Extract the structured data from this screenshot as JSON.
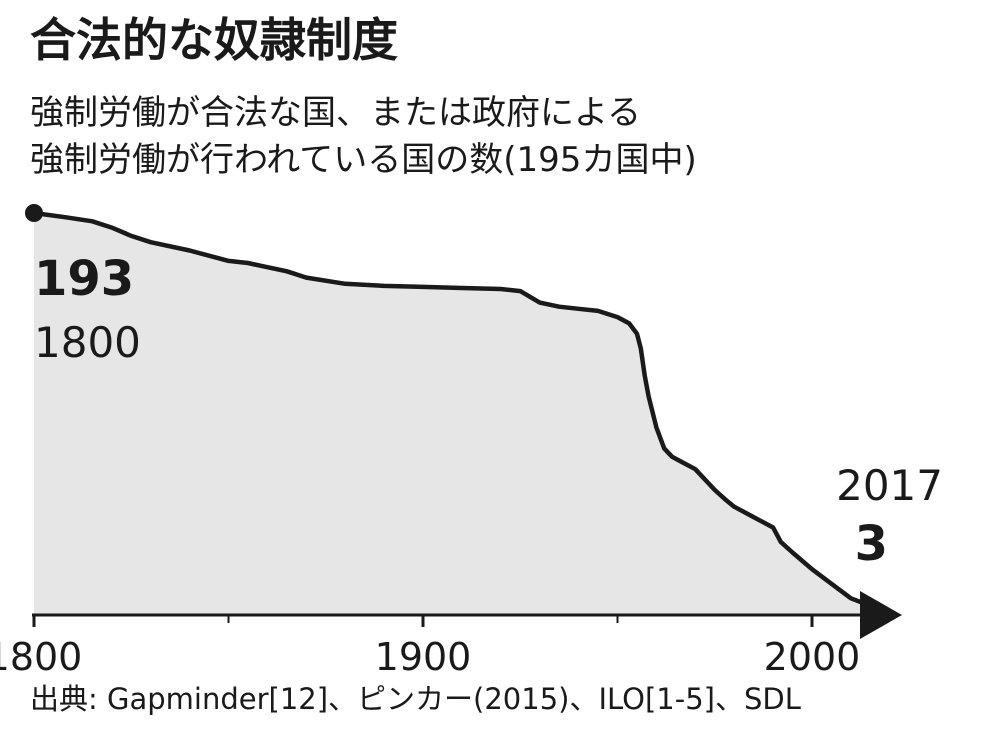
{
  "chart_data": {
    "type": "area",
    "title": "合法的な奴隷制度",
    "subtitle_lines": [
      "強制労働が合法な国、または政府による",
      "強制労働が行われている国の数(195カ国中)"
    ],
    "xlabel": "",
    "ylabel": "",
    "xlim": [
      1800,
      2020
    ],
    "ylim": [
      0,
      195
    ],
    "x_ticks": [
      1800,
      1900,
      2000
    ],
    "x_tick_labels": [
      "1800",
      "1900",
      "2000"
    ],
    "x_minor_ticks": [
      1850,
      1950
    ],
    "grid": false,
    "legend": "none",
    "series": [
      {
        "x": [
          1800,
          1808,
          1815,
          1820,
          1825,
          1830,
          1840,
          1848,
          1850,
          1855,
          1860,
          1865,
          1870,
          1880,
          1890,
          1900,
          1910,
          1920,
          1925,
          1930,
          1935,
          1940,
          1945,
          1950,
          1953,
          1955,
          1956,
          1957,
          1958,
          1960,
          1962,
          1964,
          1966,
          1968,
          1970,
          1975,
          1978,
          1980,
          1985,
          1990,
          1992,
          1995,
          2000,
          2005,
          2010,
          2017
        ],
        "y": [
          193,
          191,
          189,
          186,
          182,
          179,
          175,
          171,
          170,
          169,
          167,
          165,
          162,
          159,
          158,
          157.5,
          157,
          156.5,
          155.5,
          150,
          148,
          147,
          146,
          143,
          140,
          135,
          128,
          115,
          105,
          90,
          80,
          76,
          74,
          72,
          70,
          60,
          55,
          52,
          47,
          42,
          35,
          30,
          22,
          15,
          8,
          3
        ]
      }
    ],
    "annotations": [
      {
        "year_label": "1800",
        "value_label": "193"
      },
      {
        "year_label": "2017",
        "value_label": "3"
      }
    ],
    "source": "出典: Gapminder[12]、ピンカー(2015)、ILO[1-5]、SDL",
    "colors": {
      "fill": "#e6e6e6",
      "line": "#1a1a1a",
      "axis": "#1a1a1a",
      "text": "#1a1a1a"
    }
  }
}
